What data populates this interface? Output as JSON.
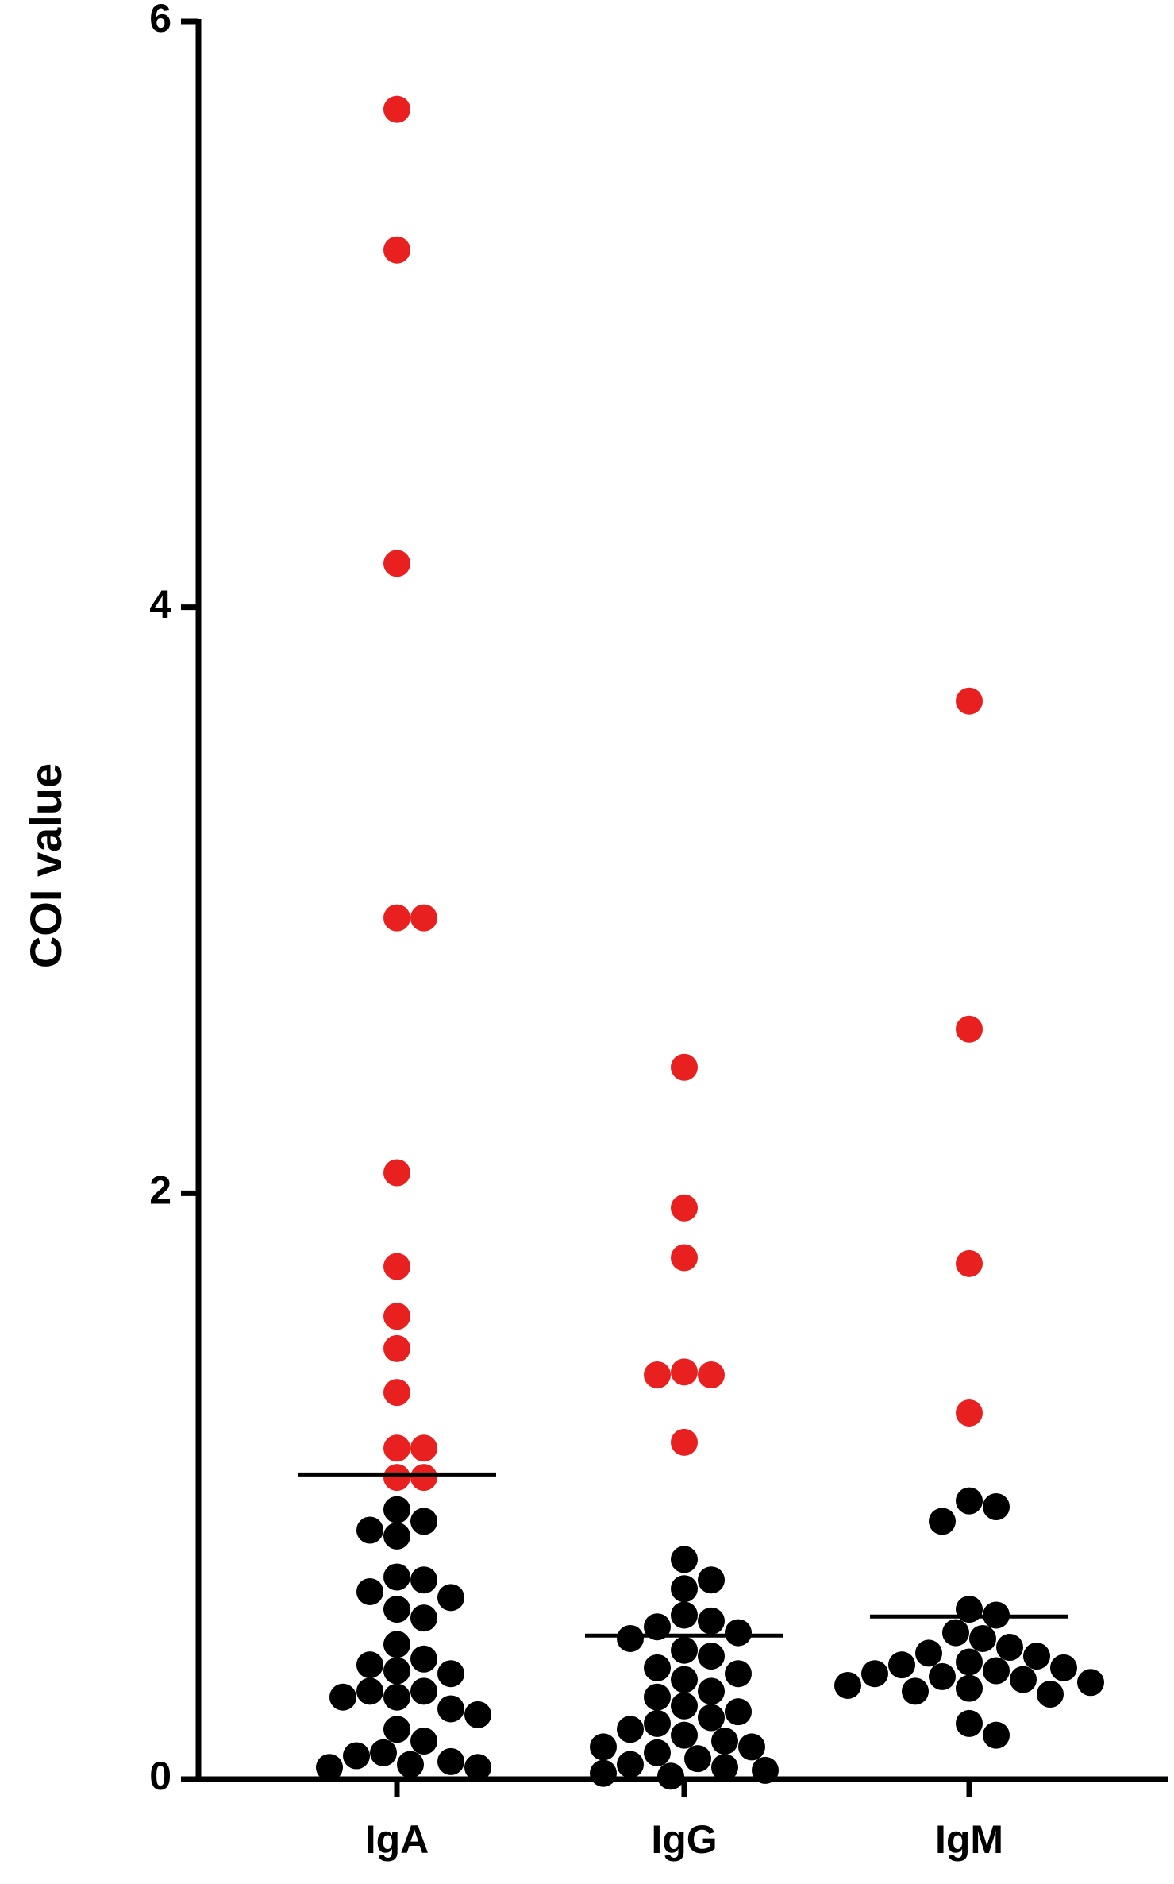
{
  "chart_data": {
    "type": "strip",
    "y_label": "COI value",
    "categories": [
      "IgA",
      "IgG",
      "IgM"
    ],
    "series": [
      {
        "color": "#e8201f",
        "values": [
          [
            5.7,
            5.22,
            4.15,
            2.94,
            2.94,
            2.07,
            1.75,
            1.58,
            1.47,
            1.32,
            1.13,
            1.13,
            1.03,
            1.03
          ],
          [
            2.43,
            1.95,
            1.78,
            1.39,
            1.38,
            1.38,
            1.15
          ],
          [
            3.68,
            2.56,
            1.76,
            1.25
          ]
        ]
      },
      {
        "color": "#000000",
        "values": [
          [
            0.92,
            0.88,
            0.85,
            0.83,
            0.69,
            0.68,
            0.64,
            0.62,
            0.58,
            0.55,
            0.46,
            0.41,
            0.39,
            0.37,
            0.36,
            0.3,
            0.3,
            0.28,
            0.28,
            0.24,
            0.22,
            0.17,
            0.13,
            0.09,
            0.08,
            0.06,
            0.05,
            0.04,
            0.04
          ],
          [
            0.75,
            0.68,
            0.65,
            0.56,
            0.54,
            0.52,
            0.5,
            0.48,
            0.44,
            0.42,
            0.38,
            0.36,
            0.34,
            0.3,
            0.28,
            0.25,
            0.23,
            0.21,
            0.19,
            0.17,
            0.15,
            0.13,
            0.11,
            0.11,
            0.09,
            0.07,
            0.05,
            0.04,
            0.03,
            0.02,
            0.01
          ],
          [
            0.95,
            0.93,
            0.88,
            0.58,
            0.56,
            0.5,
            0.48,
            0.45,
            0.43,
            0.42,
            0.4,
            0.39,
            0.38,
            0.37,
            0.36,
            0.35,
            0.34,
            0.33,
            0.32,
            0.31,
            0.3,
            0.29,
            0.19,
            0.15
          ]
        ]
      }
    ],
    "means": [
      1.04,
      0.49,
      0.555
    ],
    "ylim": [
      0,
      6
    ],
    "yticks": [
      0,
      2,
      4,
      6
    ]
  }
}
